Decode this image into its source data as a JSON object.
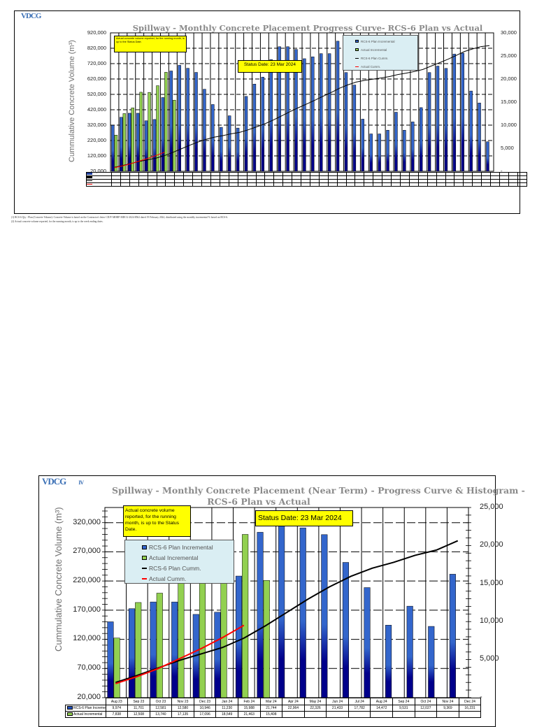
{
  "chart_data": [
    {
      "type": "bar",
      "title": "Spillway - Monthly Concrete Placement Progress Curve- RCS-6 Plan vs Actual",
      "xlabel": "",
      "ylabel": "Cummulative Concrete Volume (m³)",
      "y2label": "",
      "ylim": [
        20000,
        920000
      ],
      "y2lim": [
        0,
        30000
      ],
      "yticks": [
        "920,000",
        "820,000",
        "720,000",
        "620,000",
        "520,000",
        "420,000",
        "320,000",
        "220,000",
        "120,000",
        "20,000"
      ],
      "y2ticks": [
        "30,000",
        "25,000",
        "20,000",
        "15,000",
        "10,000",
        "5,000",
        "-"
      ],
      "grid": true,
      "legend_position": "top-right",
      "legend": [
        "RCS-6 Plan Incremental",
        "Actual Incremental",
        "RCS-6 Plan Cumm.",
        "Actual Cumm."
      ],
      "annotations": [
        "Actual concrete volume reported, for the running month, is up to the Status Date.",
        "Status Date: 23 Mar 2024"
      ],
      "categories_count": 46,
      "series": [
        {
          "name": "RCS-6 Plan Incremental",
          "axis": "right",
          "values": [
            9974,
            11701,
            12581,
            12580,
            10946,
            11230,
            15988,
            21744,
            22964,
            22326,
            21433,
            17782,
            14472,
            9531,
            12027,
            9369,
            16231,
            18900,
            20400,
            24200,
            27000,
            27000,
            26400,
            24400,
            24800,
            25500,
            25500,
            28200,
            21400,
            18700,
            11300,
            8100,
            8100,
            8900,
            12800,
            8900,
            10700,
            13800,
            21400,
            22800,
            22300,
            25400,
            25600,
            17400,
            14800,
            6400
          ]
        },
        {
          "name": "Actual Incremental",
          "axis": "right",
          "values": [
            7838,
            12508,
            13740,
            17135,
            17096,
            18549,
            21463,
            15408
          ]
        },
        {
          "name": "RCS-6 Plan Cumm.",
          "axis": "left",
          "values": [
            46000,
            58000,
            71000,
            84000,
            95000,
            106000,
            122000,
            143000,
            166000,
            189000,
            210000,
            228000,
            242000,
            252000,
            264000,
            273000,
            289000,
            308000,
            328000,
            352000,
            379000,
            406000,
            432000,
            456000,
            481000,
            507000,
            532000,
            560000,
            582000,
            600000,
            611000,
            619000,
            627000,
            636000,
            649000,
            658000,
            669000,
            682000,
            704000,
            726000,
            748000,
            773000,
            799000,
            816000,
            831000,
            837000
          ]
        },
        {
          "name": "Actual Cumm.",
          "axis": "left",
          "values": [
            44000,
            56000,
            70000,
            87000,
            104000,
            123000,
            144000
          ]
        }
      ],
      "footnotes": [
        "(1)  RCS-6 Qty - Plan (Concrete Volume): Concrete Volume is based on the Contractor's letter CDJV-MIHIP-MDCG-2024-8562 dated 19 February 2024, distributed using the monthly incremental % based on RCS-6.",
        "(2)  Actual concrete volume reported, for the running month, is up to the week ending dates."
      ]
    },
    {
      "type": "bar",
      "title": "Spillway - Monthly Concrete Placement (Near Term)  - Progress Curve & Histogram - RCS-6 Plan vs Actual",
      "xlabel": "",
      "ylabel": "Cummulative Concrete Volume (m³)",
      "ylim": [
        20000,
        346000
      ],
      "y2lim": [
        0,
        25000
      ],
      "yticks": [
        "320,000",
        "270,000",
        "220,000",
        "170,000",
        "120,000",
        "70,000",
        "20,000"
      ],
      "y2ticks": [
        "25,000",
        "20,000",
        "15,000",
        "10,000",
        "5,000",
        "-"
      ],
      "grid": true,
      "legend_position": "upper-left",
      "legend": [
        "RCS-6 Plan Incremental",
        "Actual Incremental",
        "RCS-6 Plan Cumm.",
        "Actual Cumm."
      ],
      "annotations": [
        "Actual concrete volume reported, for the running month, is up to the Status Date.",
        "Status Date: 23 Mar 2024"
      ],
      "categories": [
        "Aug 23",
        "Sep 23",
        "Oct 23",
        "Nov 23",
        "Dec 23",
        "Jan 24",
        "Feb 24",
        "Mar 24",
        "Apr 24",
        "May 24",
        "Jun 24",
        "Jul 24",
        "Aug 24",
        "Sep 24",
        "Oct 24",
        "Nov 24",
        "Dec 24"
      ],
      "series": [
        {
          "name": "RCS-6 Plan Incremental",
          "axis": "right",
          "values": [
            9974,
            11701,
            12581,
            12580,
            10946,
            11230,
            15988,
            21744,
            22964,
            22326,
            21433,
            17782,
            14472,
            9531,
            12027,
            9369,
            16231
          ]
        },
        {
          "name": "Actual Incremental",
          "axis": "right",
          "values": [
            7838,
            12508,
            13740,
            17135,
            17096,
            18549,
            21463,
            15408
          ]
        },
        {
          "name": "RCS-6 Plan Cumm.",
          "axis": "left",
          "values": [
            46000,
            58000,
            71000,
            84000,
            95000,
            106000,
            122000,
            143000,
            166000,
            189000,
            210000,
            228000,
            242000,
            252000,
            264000,
            273000,
            289000
          ]
        },
        {
          "name": "Actual Cumm.",
          "axis": "left",
          "values": [
            44000,
            56000,
            70000,
            87000,
            104000,
            123000,
            144000
          ]
        }
      ],
      "table": {
        "row_labels": [
          "RCS-6 Plan Incremental",
          "Actual Incremental"
        ],
        "rows": [
          [
            "9,974",
            "11,701",
            "12,581",
            "12,580",
            "10,946",
            "11,230",
            "15,988",
            "21,744",
            "22,964",
            "22,326",
            "21,433",
            "17,782",
            "14,472",
            "9,531",
            "12,027",
            "9,369",
            "16,231"
          ],
          [
            "7,838",
            "12,508",
            "13,740",
            "17,135",
            "17,096",
            "18,549",
            "21,463",
            "15,408",
            "",
            "",
            "",
            "",
            "",
            "",
            "",
            "",
            ""
          ]
        ]
      }
    }
  ],
  "top": {
    "logo": "VDCG",
    "title": "Spillway - Monthly Concrete Placement Progress Curve- RCS-6 Plan vs Actual",
    "ylabel": "Cummulative Concrete Volume (m³)",
    "note": "Actual concrete volume reported, for the running month, is up to the Status Date.",
    "status": "Status Date: 23 Mar 2024",
    "legend": [
      "RCS-6 Plan Incremental",
      "Actual Incremental",
      "RCS-6 Plan Cumm.",
      "Actual Cumm."
    ],
    "footnote1": "(1)  RCS-6 Qty - Plan (Concrete Volume): Concrete Volume is based on the Contractor's letter CDJV-MIHIP-MDCG-2024-8562 dated 19 February 2024, distributed using the monthly incremental % based on RCS-6.",
    "footnote2": "(2)  Actual concrete volume reported, for the running month, is up to the week ending dates."
  },
  "bottom": {
    "logo": "VDCG",
    "logo_suffix": "IV",
    "title_line1": "Spillway - Monthly Concrete Placement (Near Term)  - Progress Curve & Histogram -",
    "title_line2": "RCS-6 Plan vs Actual",
    "ylabel": "Cummulative Concrete Volume (m³)",
    "note": "Actual concrete volume reported, for the running month, is up to the Status Date.",
    "status": "Status Date: 23 Mar 2024",
    "legend": [
      "RCS-6 Plan Incremental",
      "Actual Incremental",
      "RCS-6 Plan Cumm.",
      "Actual Cumm."
    ]
  },
  "colors": {
    "plan_bar_top": "#3366cc",
    "plan_bar_bottom": "#00008b",
    "actual_bar": "#92d050",
    "plan_line": "#000000",
    "actual_line": "#ff0000",
    "note_bg": "#ffff00",
    "legend_bg": "#daeef3"
  }
}
